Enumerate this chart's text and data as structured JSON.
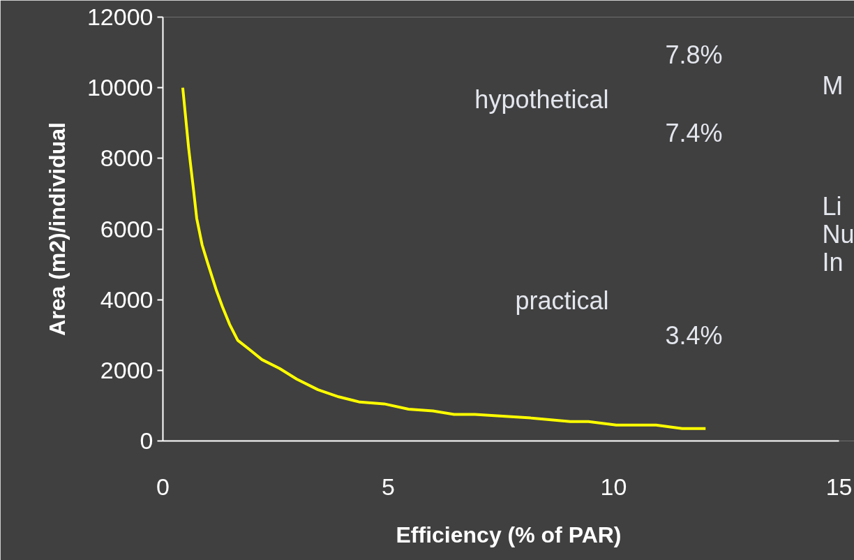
{
  "chart_data": {
    "type": "line",
    "xlabel": "Efficiency (% of PAR)",
    "ylabel": "Area (m2)/individual",
    "x": [
      0.44,
      0.57,
      0.68,
      0.75,
      0.87,
      0.99,
      1.19,
      1.32,
      1.48,
      1.66,
      1.91,
      2.2,
      2.59,
      2.97,
      3.44,
      3.9,
      4.37,
      4.91,
      5.45,
      5.99,
      6.46,
      6.92,
      7.54,
      8.16,
      9.04,
      9.44,
      9.75,
      10.06,
      10.94,
      11.52,
      12.04
    ],
    "series": [
      {
        "color": "#ffff00",
        "values": [
          10000,
          8300,
          7100,
          6300,
          5550,
          5050,
          4250,
          3800,
          3300,
          2850,
          2600,
          2300,
          2050,
          1750,
          1450,
          1250,
          1100,
          1050,
          900,
          850,
          750,
          750,
          700,
          650,
          550,
          550,
          500,
          450,
          450,
          350,
          350
        ]
      }
    ],
    "xlim": [
      0,
      15.34
    ],
    "xticks": [
      0,
      5,
      10,
      15
    ],
    "ylim": [
      0,
      12000
    ],
    "yticks": [
      0,
      2000,
      4000,
      6000,
      8000,
      10000,
      12000
    ],
    "grid": false,
    "marker": "none",
    "line_style": "solid",
    "annotations": [
      "7.8%",
      "hypothetical",
      "7.4%",
      "practical",
      "3.4%",
      "M",
      "Li",
      "Nu",
      "In"
    ]
  }
}
